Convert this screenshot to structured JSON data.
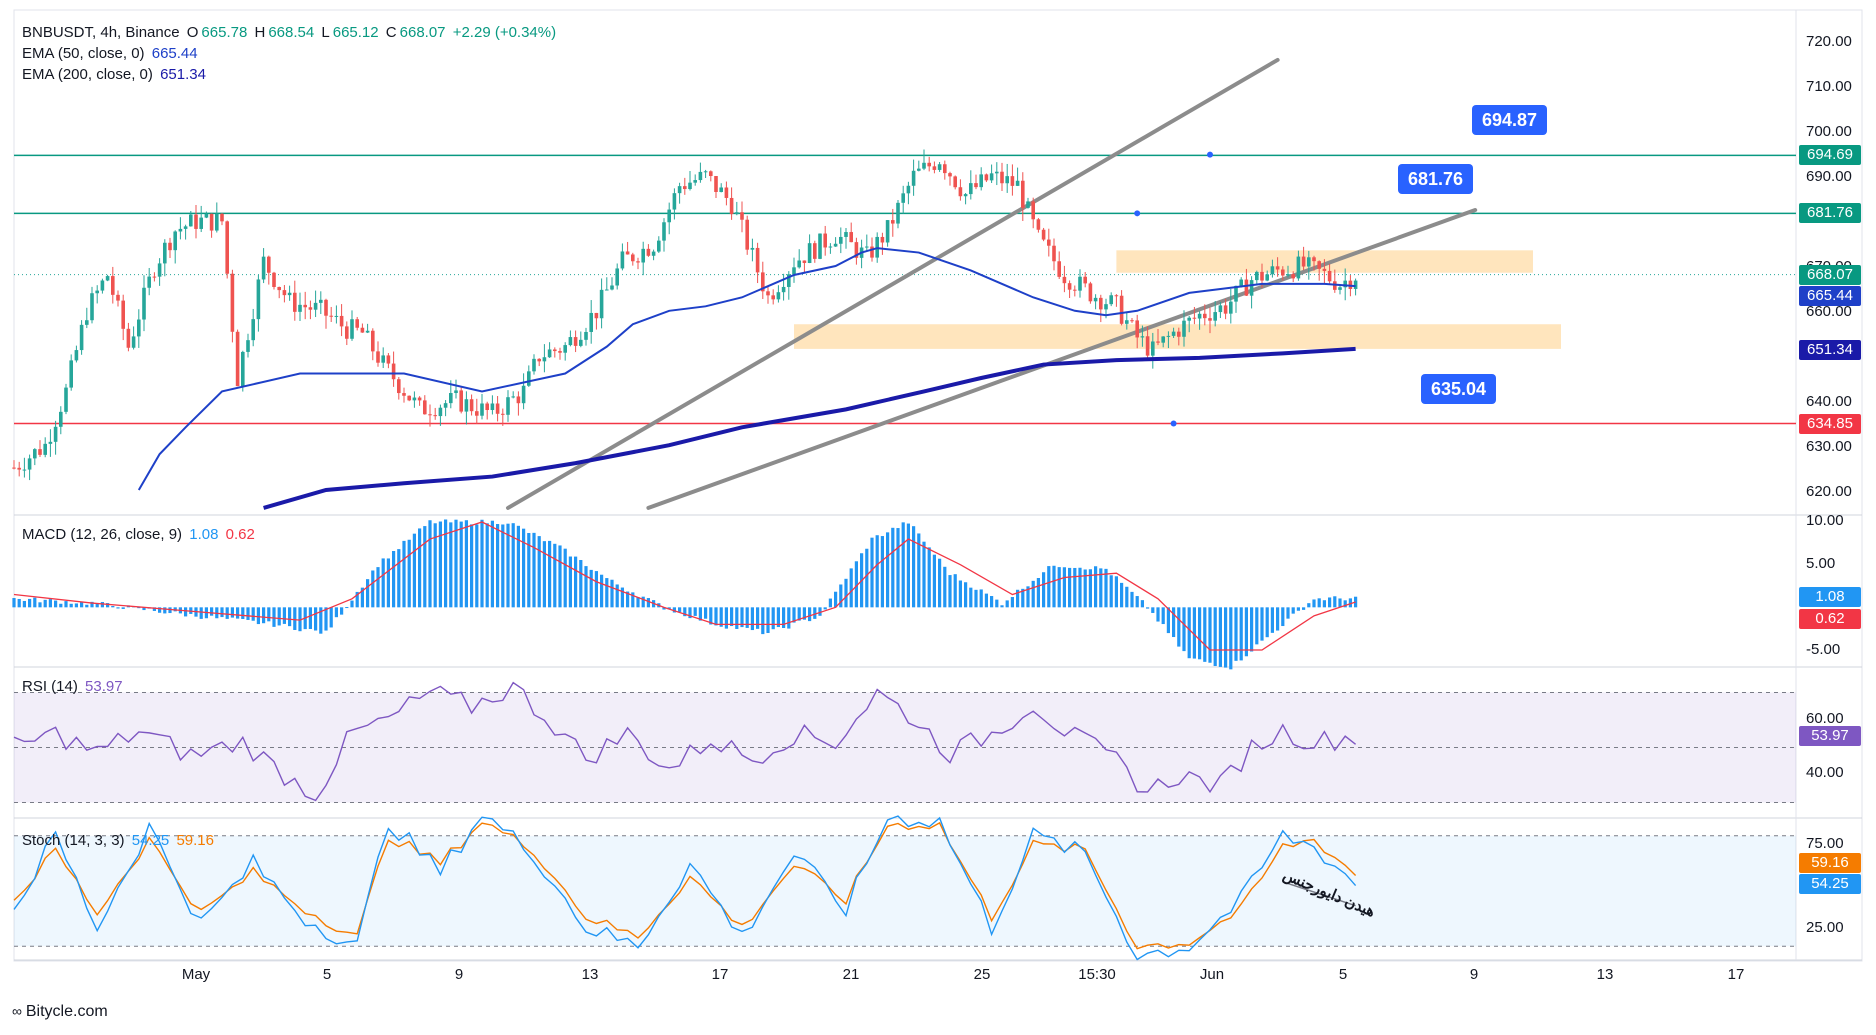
{
  "symbol": {
    "name": "BNBUSDT, 4h, Binance",
    "o_label": "O",
    "o": "665.78",
    "h_label": "H",
    "h": "668.54",
    "l_label": "L",
    "l": "665.12",
    "c_label": "C",
    "c": "668.07",
    "chg": "+2.29 (+0.34%)"
  },
  "indicators": {
    "ema50": {
      "label": "EMA (50, close, 0)",
      "value": "665.44",
      "color": "#1e40c8"
    },
    "ema200": {
      "label": "EMA (200, close, 0)",
      "value": "651.34",
      "color": "#1a1aa8"
    },
    "macd": {
      "label": "MACD (12, 26, close, 9)",
      "macd": "1.08",
      "signal": "0.62"
    },
    "rsi": {
      "label": "RSI (14)",
      "value": "53.97"
    },
    "stoch": {
      "label": "Stoch (14, 3, 3)",
      "k": "54.25",
      "d": "59.16",
      "annotation": "هیدن دایورجنس"
    }
  },
  "price_axis": {
    "ticks": [
      "720.00",
      "710.00",
      "700.00",
      "690.00",
      "680.00",
      "670.00",
      "660.00",
      "650.00",
      "640.00",
      "630.00",
      "620.00"
    ]
  },
  "macd_axis": {
    "ticks": [
      "10.00",
      "5.00",
      "-5.00"
    ]
  },
  "rsi_axis": {
    "ticks": [
      "60.00",
      "40.00"
    ]
  },
  "stoch_axis": {
    "ticks": [
      "75.00",
      "25.00"
    ]
  },
  "x_axis": {
    "labels": [
      "May",
      "5",
      "9",
      "13",
      "17",
      "21",
      "25",
      "15:30",
      "Jun",
      "5",
      "9",
      "13",
      "17"
    ]
  },
  "price_tags": {
    "level_high": "694.69",
    "level_mid": "681.76",
    "last": "668.07",
    "ema50": "665.44",
    "ema200": "651.34",
    "level_low": "634.85",
    "macd": "1.08",
    "signal": "0.62",
    "rsi": "53.97",
    "stoch_d": "59.16",
    "stoch_k": "54.25"
  },
  "callouts": {
    "c1": "694.87",
    "c2": "681.76",
    "c3": "635.04"
  },
  "watermark": "Bitycle.com",
  "colors": {
    "up": "#26a69a",
    "down": "#ef5350",
    "level_green": "#089981",
    "level_red": "#f23645",
    "zone": "#ffe0b2",
    "trend": "#8c8c8c",
    "macd_hist": "#2196f3",
    "signal": "#f23645",
    "rsi": "#7e57c2",
    "stoch_k": "#2196f3",
    "stoch_d": "#f57c00",
    "callout": "#2962ff"
  },
  "chart_data": {
    "type": "candlestick",
    "timeframe": "4h",
    "ylim": [
      615,
      723
    ],
    "horizontal_levels": [
      694.69,
      681.76,
      634.85
    ],
    "zones": [
      {
        "from": 668.5,
        "to": 673.5
      },
      {
        "from": 651.5,
        "to": 657
      }
    ],
    "close_path": [
      [
        0,
        625
      ],
      [
        6,
        630
      ],
      [
        10,
        642
      ],
      [
        14,
        660
      ],
      [
        18,
        668
      ],
      [
        22,
        652
      ],
      [
        27,
        670
      ],
      [
        31,
        678
      ],
      [
        35,
        680
      ],
      [
        40,
        680
      ],
      [
        43,
        645
      ],
      [
        48,
        671
      ],
      [
        53,
        662
      ],
      [
        59,
        660
      ],
      [
        64,
        656
      ],
      [
        67,
        655
      ],
      [
        71,
        648
      ],
      [
        78,
        638
      ],
      [
        85,
        640
      ],
      [
        92,
        637
      ],
      [
        98,
        642
      ],
      [
        101,
        650
      ],
      [
        106,
        652
      ],
      [
        112,
        660
      ],
      [
        117,
        671
      ],
      [
        123,
        675
      ],
      [
        128,
        688
      ],
      [
        133,
        690
      ],
      [
        138,
        684
      ],
      [
        145,
        663
      ],
      [
        150,
        671
      ],
      [
        158,
        677
      ],
      [
        164,
        672
      ],
      [
        168,
        678
      ],
      [
        173,
        690
      ],
      [
        178,
        694
      ],
      [
        183,
        686
      ],
      [
        188,
        690
      ],
      [
        193,
        688
      ],
      [
        197,
        676
      ],
      [
        202,
        668
      ],
      [
        207,
        664
      ],
      [
        212,
        661
      ],
      [
        216,
        654
      ],
      [
        219,
        651
      ],
      [
        224,
        656
      ],
      [
        228,
        659
      ],
      [
        233,
        661
      ],
      [
        238,
        667
      ],
      [
        243,
        669
      ],
      [
        248,
        670
      ],
      [
        252,
        668
      ],
      [
        255,
        666
      ],
      [
        258,
        668
      ]
    ],
    "ema50": [
      [
        24,
        620
      ],
      [
        28,
        628
      ],
      [
        33,
        634
      ],
      [
        40,
        642
      ],
      [
        55,
        646
      ],
      [
        75,
        646
      ],
      [
        90,
        642
      ],
      [
        98,
        644
      ],
      [
        106,
        646
      ],
      [
        114,
        652
      ],
      [
        119,
        657
      ],
      [
        126,
        660
      ],
      [
        133,
        661
      ],
      [
        140,
        663
      ],
      [
        150,
        668
      ],
      [
        158,
        670
      ],
      [
        163,
        673
      ],
      [
        166,
        674
      ],
      [
        174,
        673
      ],
      [
        184,
        669
      ],
      [
        196,
        663
      ],
      [
        204,
        660
      ],
      [
        210,
        659
      ],
      [
        216,
        660
      ],
      [
        226,
        664
      ],
      [
        240,
        666
      ],
      [
        252,
        666
      ],
      [
        258,
        665.5
      ]
    ],
    "ema200": [
      [
        48,
        616
      ],
      [
        60,
        620
      ],
      [
        75,
        621.5
      ],
      [
        92,
        623
      ],
      [
        108,
        626
      ],
      [
        126,
        630
      ],
      [
        140,
        634
      ],
      [
        160,
        638
      ],
      [
        175,
        642
      ],
      [
        186,
        645
      ],
      [
        198,
        648
      ],
      [
        212,
        649
      ],
      [
        228,
        649.5
      ],
      [
        244,
        650.5
      ],
      [
        258,
        651.5
      ]
    ],
    "macd_hist_envelope": [
      [
        0,
        1
      ],
      [
        15,
        0.5
      ],
      [
        35,
        -1
      ],
      [
        50,
        -2
      ],
      [
        60,
        -3
      ],
      [
        70,
        5
      ],
      [
        80,
        10
      ],
      [
        95,
        10
      ],
      [
        105,
        7
      ],
      [
        115,
        3
      ],
      [
        125,
        0
      ],
      [
        135,
        -2
      ],
      [
        145,
        -3
      ],
      [
        155,
        -1
      ],
      [
        165,
        8
      ],
      [
        172,
        10
      ],
      [
        180,
        4
      ],
      [
        190,
        0.5
      ],
      [
        200,
        5
      ],
      [
        210,
        4.5
      ],
      [
        218,
        0
      ],
      [
        226,
        -6
      ],
      [
        234,
        -7
      ],
      [
        242,
        -3
      ],
      [
        250,
        1
      ],
      [
        258,
        1.08
      ]
    ],
    "macd_signal": [
      [
        0,
        1.5
      ],
      [
        15,
        0.5
      ],
      [
        35,
        -0.5
      ],
      [
        55,
        -1.5
      ],
      [
        65,
        1
      ],
      [
        80,
        8
      ],
      [
        90,
        10
      ],
      [
        100,
        7
      ],
      [
        112,
        3
      ],
      [
        125,
        0
      ],
      [
        135,
        -2
      ],
      [
        148,
        -2
      ],
      [
        158,
        0
      ],
      [
        166,
        5
      ],
      [
        172,
        8
      ],
      [
        182,
        5
      ],
      [
        192,
        1.5
      ],
      [
        202,
        3.5
      ],
      [
        212,
        4
      ],
      [
        220,
        1
      ],
      [
        230,
        -5
      ],
      [
        240,
        -5
      ],
      [
        250,
        -1
      ],
      [
        258,
        0.62
      ]
    ],
    "rsi": [
      [
        0,
        50
      ],
      [
        8,
        55
      ],
      [
        16,
        48
      ],
      [
        24,
        56
      ],
      [
        34,
        47
      ],
      [
        44,
        52
      ],
      [
        52,
        40
      ],
      [
        58,
        33
      ],
      [
        65,
        55
      ],
      [
        72,
        60
      ],
      [
        80,
        70
      ],
      [
        88,
        65
      ],
      [
        96,
        72
      ],
      [
        104,
        58
      ],
      [
        110,
        46
      ],
      [
        118,
        55
      ],
      [
        126,
        42
      ],
      [
        134,
        53
      ],
      [
        142,
        46
      ],
      [
        150,
        55
      ],
      [
        158,
        52
      ],
      [
        166,
        70
      ],
      [
        172,
        62
      ],
      [
        180,
        48
      ],
      [
        188,
        55
      ],
      [
        196,
        66
      ],
      [
        202,
        56
      ],
      [
        212,
        45
      ],
      [
        218,
        34
      ],
      [
        224,
        40
      ],
      [
        232,
        36
      ],
      [
        238,
        50
      ],
      [
        244,
        56
      ],
      [
        250,
        52
      ],
      [
        258,
        53.97
      ]
    ],
    "stoch_k": [
      [
        0,
        40
      ],
      [
        8,
        80
      ],
      [
        16,
        30
      ],
      [
        26,
        85
      ],
      [
        36,
        32
      ],
      [
        46,
        65
      ],
      [
        56,
        35
      ],
      [
        66,
        20
      ],
      [
        72,
        88
      ],
      [
        82,
        60
      ],
      [
        90,
        92
      ],
      [
        100,
        70
      ],
      [
        110,
        30
      ],
      [
        120,
        20
      ],
      [
        130,
        65
      ],
      [
        140,
        25
      ],
      [
        150,
        70
      ],
      [
        160,
        40
      ],
      [
        168,
        90
      ],
      [
        178,
        88
      ],
      [
        188,
        30
      ],
      [
        196,
        80
      ],
      [
        206,
        70
      ],
      [
        216,
        15
      ],
      [
        226,
        20
      ],
      [
        236,
        45
      ],
      [
        244,
        80
      ],
      [
        250,
        74
      ],
      [
        258,
        54.25
      ]
    ],
    "stoch_d": [
      [
        0,
        45
      ],
      [
        8,
        72
      ],
      [
        16,
        38
      ],
      [
        26,
        78
      ],
      [
        36,
        38
      ],
      [
        46,
        60
      ],
      [
        56,
        40
      ],
      [
        66,
        25
      ],
      [
        72,
        80
      ],
      [
        82,
        65
      ],
      [
        90,
        88
      ],
      [
        100,
        72
      ],
      [
        110,
        36
      ],
      [
        120,
        25
      ],
      [
        130,
        58
      ],
      [
        140,
        30
      ],
      [
        150,
        64
      ],
      [
        160,
        45
      ],
      [
        168,
        86
      ],
      [
        178,
        86
      ],
      [
        188,
        36
      ],
      [
        196,
        75
      ],
      [
        206,
        72
      ],
      [
        216,
        20
      ],
      [
        226,
        22
      ],
      [
        236,
        40
      ],
      [
        244,
        74
      ],
      [
        250,
        78
      ],
      [
        258,
        59.16
      ]
    ]
  }
}
